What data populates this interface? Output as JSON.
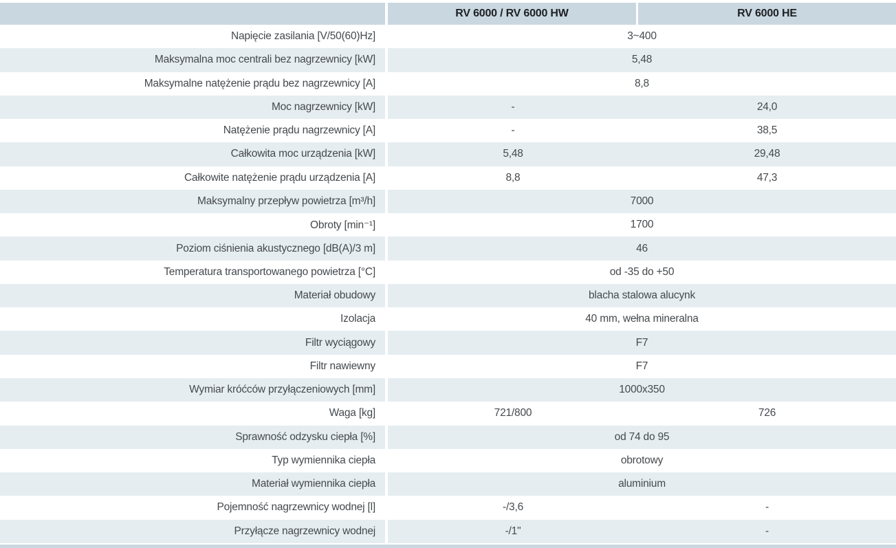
{
  "colors": {
    "header_bg": "#c9d7e0",
    "alt_row_bg": "#e6edf1",
    "text": "#45494d",
    "header_text": "#1d2023"
  },
  "header": {
    "col1": "RV 6000 / RV 6000 HW",
    "col2": "RV 6000 HE"
  },
  "rows": [
    {
      "label": "Napięcie zasilania [V/50(60)Hz]",
      "value": "3~400"
    },
    {
      "label": "Maksymalna moc centrali bez nagrzewnicy [kW]",
      "value": "5,48"
    },
    {
      "label": "Maksymalne natężenie prądu bez nagrzewnicy [A]",
      "value": "8,8"
    },
    {
      "label": "Moc nagrzewnicy [kW]",
      "value1": "-",
      "value2": "24,0"
    },
    {
      "label": "Natężenie prądu nagrzewnicy [A]",
      "value1": "-",
      "value2": "38,5"
    },
    {
      "label": "Całkowita moc urządzenia [kW]",
      "value1": "5,48",
      "value2": "29,48"
    },
    {
      "label": "Całkowite natężenie prądu urządzenia [A]",
      "value1": "8,8",
      "value2": "47,3"
    },
    {
      "label": "Maksymalny przepływ powietrza [m³/h]",
      "value": "7000"
    },
    {
      "label": "Obroty [min⁻¹]",
      "value": "1700"
    },
    {
      "label": "Poziom ciśnienia akustycznego  [dB(A)/3 m]",
      "value": "46"
    },
    {
      "label": "Temperatura transportowanego powietrza [°C]",
      "value": "od -35 do +50"
    },
    {
      "label": "Materiał obudowy",
      "value": "blacha stalowa alucynk"
    },
    {
      "label": "Izolacja",
      "value": "40 mm, wełna mineralna"
    },
    {
      "label": "Filtr wyciągowy",
      "value": "F7"
    },
    {
      "label": "Filtr nawiewny",
      "value": "F7"
    },
    {
      "label": "Wymiar króćców przyłączeniowych [mm]",
      "value": "1000x350"
    },
    {
      "label": "Waga [kg]",
      "value1": "721/800",
      "value2": "726"
    },
    {
      "label": "Sprawność odzysku ciepła [%]",
      "value": "od 74 do 95"
    },
    {
      "label": "Typ wymiennika ciepła",
      "value": "obrotowy"
    },
    {
      "label": "Materiał wymiennika ciepła",
      "value": "aluminium"
    },
    {
      "label": "Pojemność nagrzewnicy wodnej [l]",
      "value1": "-/3,6",
      "value2": "-"
    },
    {
      "label": "Przyłącze nagrzewnicy wodnej",
      "value1": "-/1\"",
      "value2": "-"
    }
  ]
}
